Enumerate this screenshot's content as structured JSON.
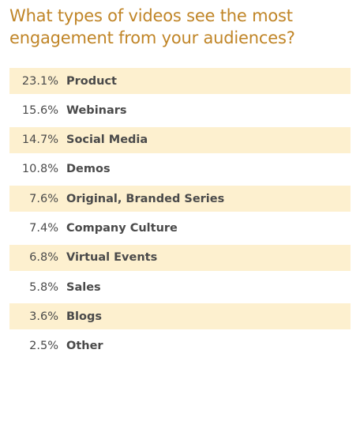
{
  "title": "What types of videos see the most engagement from your audiences?",
  "colors": {
    "title": "#c08527",
    "band": "#fdf0cf",
    "text": "#4a4a4a"
  },
  "chart_data": {
    "type": "table",
    "title": "What types of videos see the most engagement from your audiences?",
    "columns": [
      "percent",
      "category"
    ],
    "rows": [
      {
        "percent": "23.1%",
        "category": "Product",
        "value": 23.1
      },
      {
        "percent": "15.6%",
        "category": "Webinars",
        "value": 15.6
      },
      {
        "percent": "14.7%",
        "category": "Social Media",
        "value": 14.7
      },
      {
        "percent": "10.8%",
        "category": "Demos",
        "value": 10.8
      },
      {
        "percent": "7.6%",
        "category": "Original, Branded Series",
        "value": 7.6
      },
      {
        "percent": "7.4%",
        "category": "Company Culture",
        "value": 7.4
      },
      {
        "percent": "6.8%",
        "category": "Virtual Events",
        "value": 6.8
      },
      {
        "percent": "5.8%",
        "category": "Sales",
        "value": 5.8
      },
      {
        "percent": "3.6%",
        "category": "Blogs",
        "value": 3.6
      },
      {
        "percent": "2.5%",
        "category": "Other",
        "value": 2.5
      }
    ]
  }
}
